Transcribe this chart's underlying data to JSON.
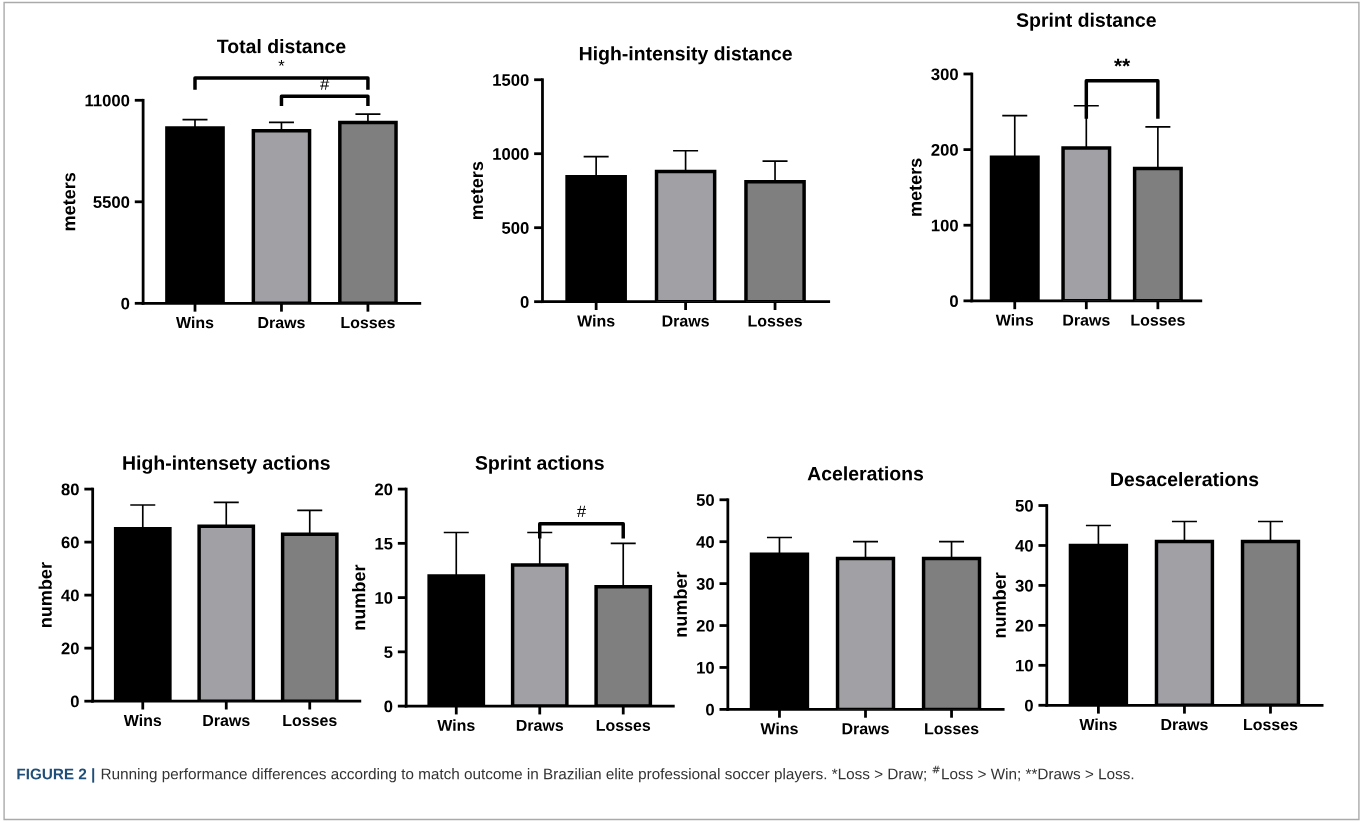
{
  "chart_data": [
    {
      "type": "bar",
      "title": "Total distance",
      "ylabel": "meters",
      "categories": [
        "Wins",
        "Draws",
        "Losses"
      ],
      "values": [
        9500,
        9350,
        9800
      ],
      "colors": [
        "#000000",
        "#a0a0a5",
        "#7f7f7f"
      ],
      "errors": [
        [
          9500,
          9950
        ],
        [
          9350,
          9800
        ],
        [
          9800,
          10250
        ]
      ],
      "ylim": [
        0,
        11000
      ],
      "yticks": [
        0,
        5500,
        11000
      ],
      "grid": false,
      "legend": false,
      "annotations": [
        "*",
        "#"
      ]
    },
    {
      "type": "bar",
      "title": "High-intensity distance",
      "ylabel": "meters",
      "categories": [
        "Wins",
        "Draws",
        "Losses"
      ],
      "values": [
        845,
        880,
        810
      ],
      "colors": [
        "#000000",
        "#a0a0a5",
        "#7f7f7f"
      ],
      "errors": [
        [
          845,
          980
        ],
        [
          880,
          1020
        ],
        [
          810,
          950
        ]
      ],
      "ylim": [
        0,
        1500
      ],
      "yticks": [
        0,
        500,
        1000,
        1500
      ],
      "grid": false,
      "legend": false
    },
    {
      "type": "bar",
      "title": "Sprint distance",
      "ylabel": "meters",
      "categories": [
        "Wins",
        "Draws",
        "Losses"
      ],
      "values": [
        190,
        202,
        175
      ],
      "colors": [
        "#000000",
        "#a0a0a5",
        "#7f7f7f"
      ],
      "errors": [
        [
          190,
          245
        ],
        [
          202,
          258
        ],
        [
          175,
          230
        ]
      ],
      "ylim": [
        0,
        300
      ],
      "yticks": [
        0,
        100,
        200,
        300
      ],
      "grid": false,
      "legend": false,
      "annotations": [
        "**"
      ]
    },
    {
      "type": "bar",
      "title": "High-intensety actions",
      "ylabel": "number",
      "categories": [
        "Wins",
        "Draws",
        "Losses"
      ],
      "values": [
        65,
        66,
        63
      ],
      "colors": [
        "#000000",
        "#a0a0a5",
        "#7f7f7f"
      ],
      "errors": [
        [
          65,
          74
        ],
        [
          66,
          75
        ],
        [
          63,
          72
        ]
      ],
      "ylim": [
        0,
        80
      ],
      "yticks": [
        0,
        20,
        40,
        60,
        80
      ],
      "grid": false,
      "legend": false
    },
    {
      "type": "bar",
      "title": "Sprint actions",
      "ylabel": "number",
      "categories": [
        "Wins",
        "Draws",
        "Losses"
      ],
      "values": [
        12,
        13,
        11
      ],
      "colors": [
        "#000000",
        "#a0a0a5",
        "#7f7f7f"
      ],
      "errors": [
        [
          12,
          16
        ],
        [
          13,
          16
        ],
        [
          11,
          15
        ]
      ],
      "ylim": [
        0,
        20
      ],
      "yticks": [
        0,
        5,
        10,
        15,
        20
      ],
      "grid": false,
      "legend": false,
      "annotations": [
        "#"
      ]
    },
    {
      "type": "bar",
      "title": "Acelerations",
      "ylabel": "number",
      "categories": [
        "Wins",
        "Draws",
        "Losses"
      ],
      "values": [
        37,
        36,
        36
      ],
      "colors": [
        "#000000",
        "#a0a0a5",
        "#7f7f7f"
      ],
      "errors": [
        [
          37,
          41
        ],
        [
          36,
          40
        ],
        [
          36,
          40
        ]
      ],
      "ylim": [
        0,
        50
      ],
      "yticks": [
        0,
        10,
        20,
        30,
        40,
        50
      ],
      "grid": false,
      "legend": false
    },
    {
      "type": "bar",
      "title": "Desacelerations",
      "ylabel": "number",
      "categories": [
        "Wins",
        "Draws",
        "Losses"
      ],
      "values": [
        40,
        41,
        41
      ],
      "colors": [
        "#000000",
        "#a0a0a5",
        "#7f7f7f"
      ],
      "errors": [
        [
          40,
          45
        ],
        [
          41,
          46
        ],
        [
          41,
          46
        ]
      ],
      "ylim": [
        0,
        50
      ],
      "yticks": [
        0,
        10,
        20,
        30,
        40,
        50
      ],
      "grid": false,
      "legend": false
    },
    {
      "type": "other",
      "annotations": [
        "FIGURE 2 |",
        "Running performance differences according to match outcome in Brazilian elite professional soccer players. *Loss > Draw; $^{#}$Loss > Win; **Draws > Loss."
      ]
    }
  ]
}
